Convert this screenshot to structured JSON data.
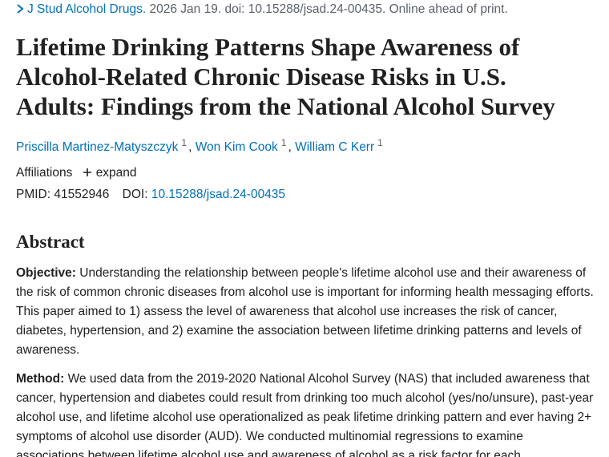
{
  "citation": {
    "journal": "J Stud Alcohol Drugs.",
    "details": "2026 Jan 19. doi: 10.15288/jsad.24-00435. Online ahead of print."
  },
  "title": "Lifetime Drinking Patterns Shape Awareness of Alcohol-Related Chronic Disease Risks in U.S. Adults: Findings from the National Alcohol Survey",
  "authors": [
    {
      "name": "Priscilla Martinez-Matyszczyk",
      "affiliation": "1"
    },
    {
      "name": "Won Kim Cook",
      "affiliation": "1"
    },
    {
      "name": "William C Kerr",
      "affiliation": "1"
    }
  ],
  "author_separator": ",",
  "affiliations": {
    "label": "Affiliations",
    "action": "expand"
  },
  "identifiers": {
    "pmid_label": "PMID:",
    "pmid": "41552946",
    "doi_label": "DOI:",
    "doi": "10.15288/jsad.24-00435"
  },
  "abstract": {
    "heading": "Abstract",
    "sections": [
      {
        "label": "Objective:",
        "text": "Understanding the relationship between people's lifetime alcohol use and their awareness of the risk of common chronic diseases from alcohol use is important for informing health messaging efforts. This paper aimed to 1) assess the level of awareness that alcohol use increases the risk of cancer, diabetes, hypertension, and 2) examine the association between lifetime drinking patterns and levels of awareness."
      },
      {
        "label": "Method:",
        "text": "We used data from the 2019-2020 National Alcohol Survey (NAS) that included awareness that cancer, hypertension and diabetes could result from drinking too much alcohol (yes/no/unsure), past-year alcohol use, and lifetime alcohol use operationalized as peak lifetime drinking pattern and ever having 2+ symptoms of alcohol use disorder (AUD). We conducted multinomial regressions to examine associations between lifetime alcohol use and awareness of alcohol as a risk factor for each"
      }
    ]
  }
}
